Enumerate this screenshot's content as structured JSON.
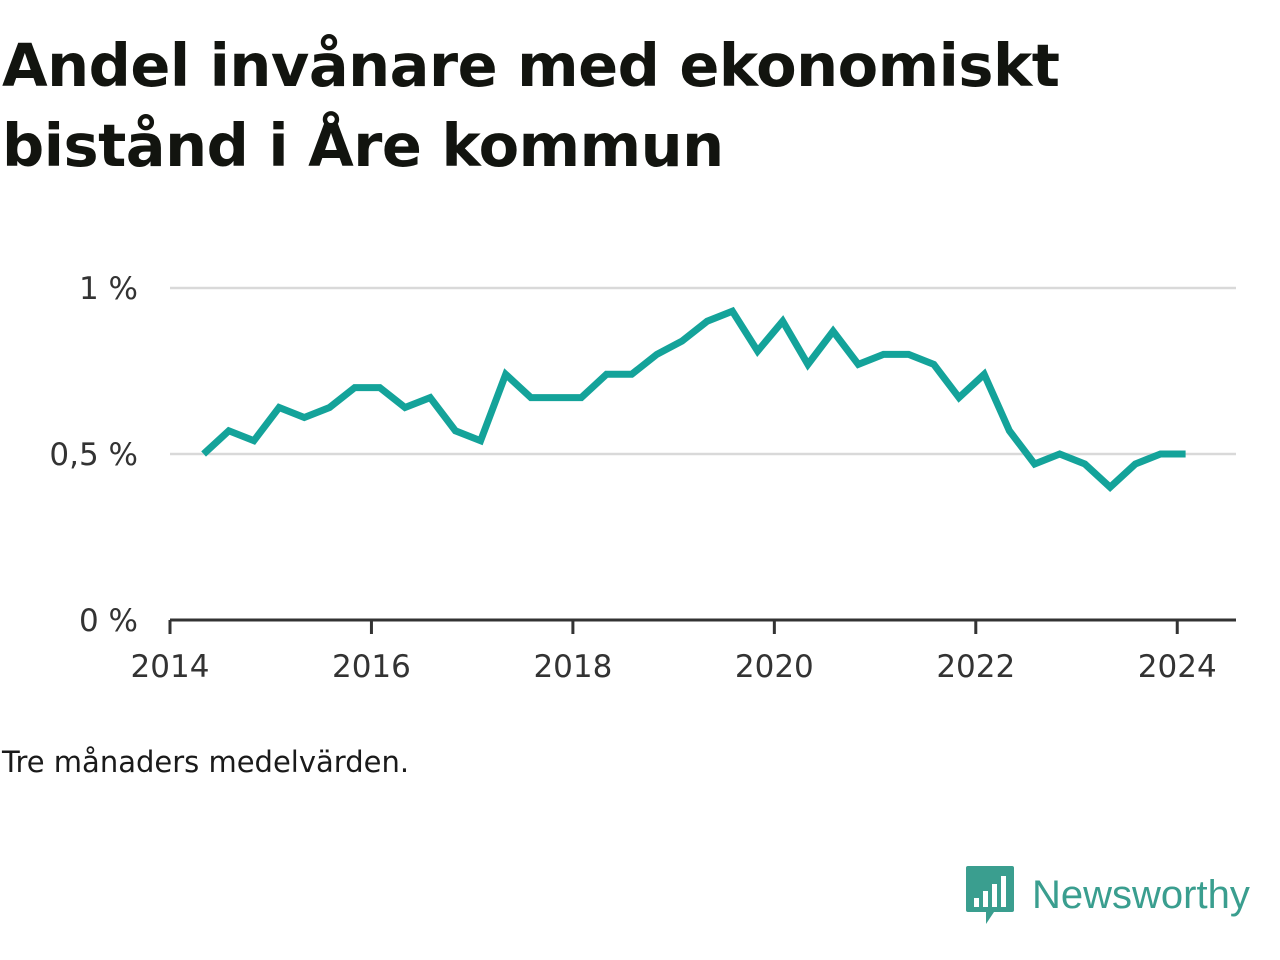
{
  "header": {
    "title": "Andel invånare med ekonomiskt bistånd i Åre kommun"
  },
  "note": "Tre månaders medelvärden.",
  "brand": {
    "name": "Newsworthy",
    "icon": "newsworthy-logo-icon",
    "color": "#3a9e8f"
  },
  "colors": {
    "line": "#14a39a",
    "grid": "#d9d9d9",
    "axis": "#333333"
  },
  "chart_data": {
    "type": "line",
    "title": "Andel invånare med ekonomiskt bistånd i Åre kommun",
    "xlabel": "",
    "ylabel": "",
    "x_ticks": [
      "2014",
      "2016",
      "2018",
      "2020",
      "2022",
      "2024"
    ],
    "y_ticks": [
      "0 %",
      "0,5 %",
      "1 %"
    ],
    "ylim": [
      0,
      1
    ],
    "xlim": [
      "2014-01",
      "2024-08"
    ],
    "grid": true,
    "series": [
      {
        "x": [
          "2014-05",
          "2014-08",
          "2014-11",
          "2015-02",
          "2015-05",
          "2015-08",
          "2015-11",
          "2016-02",
          "2016-05",
          "2016-08",
          "2016-11",
          "2017-02",
          "2017-05",
          "2017-08",
          "2017-11",
          "2018-02",
          "2018-05",
          "2018-08",
          "2018-11",
          "2019-02",
          "2019-05",
          "2019-08",
          "2019-11",
          "2020-02",
          "2020-05",
          "2020-08",
          "2020-11",
          "2021-02",
          "2021-05",
          "2021-08",
          "2021-11",
          "2022-02",
          "2022-05",
          "2022-08",
          "2022-11",
          "2023-02",
          "2023-05",
          "2023-08",
          "2023-11",
          "2024-02"
        ],
        "values": [
          0.5,
          0.57,
          0.54,
          0.64,
          0.61,
          0.64,
          0.7,
          0.7,
          0.64,
          0.67,
          0.57,
          0.54,
          0.74,
          0.67,
          0.67,
          0.67,
          0.74,
          0.74,
          0.8,
          0.84,
          0.9,
          0.93,
          0.81,
          0.9,
          0.77,
          0.87,
          0.77,
          0.8,
          0.8,
          0.77,
          0.67,
          0.74,
          0.57,
          0.47,
          0.5,
          0.47,
          0.4,
          0.47,
          0.5,
          0.5
        ]
      }
    ]
  }
}
